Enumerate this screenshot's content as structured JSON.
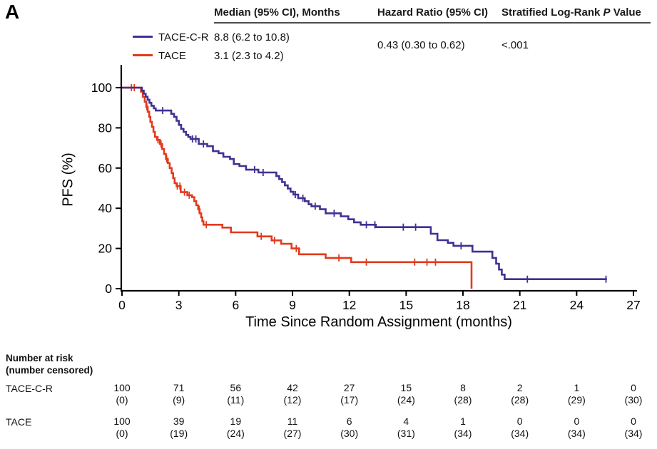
{
  "panel_label": "A",
  "colors": {
    "tace_c_r": "#3f3193",
    "tace": "#e23a1d",
    "axis": "#000000",
    "divider": "#4d4d4d"
  },
  "header": {
    "col_median": "Median (95% CI), Months",
    "col_hr": "Hazard Ratio (95% CI)",
    "col_p_prefix": "Stratified Log-Rank ",
    "col_p_italic": "P",
    "col_p_suffix": " Value",
    "hr_value": "0.43 (0.30 to 0.62)",
    "p_value": "<.001"
  },
  "legend": [
    {
      "name": "TACE-C-R",
      "median": "8.8 (6.2 to 10.8)"
    },
    {
      "name": "TACE",
      "median": "3.1 (2.3 to 4.2)"
    }
  ],
  "chart_data": {
    "type": "line",
    "subtype": "kaplan-meier-step",
    "xlabel": "Time Since Random Assignment (months)",
    "ylabel": "PFS (%)",
    "xlim": [
      0,
      27
    ],
    "ylim": [
      0,
      100
    ],
    "xticks": [
      0,
      3,
      6,
      9,
      12,
      15,
      18,
      21,
      24,
      27
    ],
    "yticks": [
      0,
      20,
      40,
      60,
      80,
      100
    ],
    "grid": false,
    "legend_position": "top-left",
    "series": [
      {
        "name": "TACE",
        "color": "#e23a1d",
        "start": [
          0,
          100
        ],
        "end_time": 18.45,
        "steps": [
          [
            1.0,
            98
          ],
          [
            1.1,
            95.5
          ],
          [
            1.2,
            93
          ],
          [
            1.28,
            90.5
          ],
          [
            1.36,
            88
          ],
          [
            1.44,
            85.5
          ],
          [
            1.5,
            83
          ],
          [
            1.58,
            80.5
          ],
          [
            1.66,
            78
          ],
          [
            1.74,
            75.5
          ],
          [
            1.85,
            74
          ],
          [
            2.0,
            72
          ],
          [
            2.12,
            69.5
          ],
          [
            2.22,
            67
          ],
          [
            2.32,
            64.5
          ],
          [
            2.42,
            62.5
          ],
          [
            2.52,
            60
          ],
          [
            2.62,
            57.5
          ],
          [
            2.7,
            55
          ],
          [
            2.78,
            52.5
          ],
          [
            2.88,
            51
          ],
          [
            3.1,
            48
          ],
          [
            3.45,
            46.5
          ],
          [
            3.7,
            45.5
          ],
          [
            3.82,
            43.5
          ],
          [
            3.92,
            41.5
          ],
          [
            4.02,
            39.5
          ],
          [
            4.1,
            37.5
          ],
          [
            4.18,
            35.5
          ],
          [
            4.24,
            33.5
          ],
          [
            4.3,
            31.8
          ],
          [
            5.3,
            30.4
          ],
          [
            5.75,
            28
          ],
          [
            7.15,
            26
          ],
          [
            7.9,
            24
          ],
          [
            8.4,
            22.3
          ],
          [
            8.95,
            20
          ],
          [
            9.35,
            17.1
          ],
          [
            10.75,
            15.3
          ],
          [
            12.1,
            13.2
          ],
          [
            18.45,
            0
          ]
        ],
        "censor_marks": [
          [
            0.5,
            100
          ],
          [
            0.65,
            100
          ],
          [
            1.31,
            90.5
          ],
          [
            1.9,
            74
          ],
          [
            2.06,
            72
          ],
          [
            2.36,
            64.5
          ],
          [
            2.92,
            51
          ],
          [
            3.06,
            51
          ],
          [
            3.3,
            48
          ],
          [
            3.55,
            46.5
          ],
          [
            4.07,
            39.5
          ],
          [
            4.45,
            31.8
          ],
          [
            7.35,
            26
          ],
          [
            8.05,
            24
          ],
          [
            9.2,
            20
          ],
          [
            11.45,
            15.3
          ],
          [
            12.9,
            13.2
          ],
          [
            15.45,
            13.2
          ],
          [
            16.1,
            13.2
          ],
          [
            16.55,
            13.2
          ]
        ]
      },
      {
        "name": "TACE-C-R",
        "color": "#3f3193",
        "start": [
          0,
          100
        ],
        "end_time": 25.6,
        "steps": [
          [
            1.05,
            98.5
          ],
          [
            1.15,
            97
          ],
          [
            1.25,
            95.5
          ],
          [
            1.35,
            94
          ],
          [
            1.45,
            92.5
          ],
          [
            1.55,
            91
          ],
          [
            1.68,
            89.7
          ],
          [
            1.78,
            88.6
          ],
          [
            2.6,
            87
          ],
          [
            2.75,
            85.5
          ],
          [
            2.88,
            83.5
          ],
          [
            3.0,
            81.5
          ],
          [
            3.12,
            79.5
          ],
          [
            3.25,
            78
          ],
          [
            3.38,
            76.5
          ],
          [
            3.5,
            75.5
          ],
          [
            3.62,
            74.5
          ],
          [
            4.05,
            72
          ],
          [
            4.5,
            70.9
          ],
          [
            4.8,
            68.4
          ],
          [
            5.1,
            67.4
          ],
          [
            5.35,
            65.6
          ],
          [
            5.7,
            64.5
          ],
          [
            5.9,
            62
          ],
          [
            6.2,
            61
          ],
          [
            6.55,
            59.2
          ],
          [
            7.2,
            57.8
          ],
          [
            8.15,
            56
          ],
          [
            8.3,
            54.5
          ],
          [
            8.45,
            53
          ],
          [
            8.6,
            51.4
          ],
          [
            8.75,
            49.8
          ],
          [
            8.9,
            48.2
          ],
          [
            9.05,
            46.8
          ],
          [
            9.3,
            45
          ],
          [
            9.65,
            43.5
          ],
          [
            9.85,
            42
          ],
          [
            10.0,
            41
          ],
          [
            10.45,
            39.5
          ],
          [
            10.75,
            37.5
          ],
          [
            11.55,
            36
          ],
          [
            11.95,
            34.5
          ],
          [
            12.25,
            33
          ],
          [
            12.6,
            31.8
          ],
          [
            13.4,
            30.6
          ],
          [
            16.3,
            27.3
          ],
          [
            16.65,
            24.1
          ],
          [
            17.2,
            22.8
          ],
          [
            17.5,
            21.3
          ],
          [
            18.5,
            18.4
          ],
          [
            19.55,
            15.3
          ],
          [
            19.75,
            12.4
          ],
          [
            19.9,
            9.5
          ],
          [
            20.05,
            7
          ],
          [
            20.2,
            4.7
          ]
        ],
        "censor_marks": [
          [
            2.15,
            88.6
          ],
          [
            3.72,
            74.5
          ],
          [
            3.9,
            74.5
          ],
          [
            4.3,
            72
          ],
          [
            7.0,
            59.2
          ],
          [
            7.45,
            57.8
          ],
          [
            9.15,
            46.8
          ],
          [
            9.55,
            45
          ],
          [
            10.2,
            41
          ],
          [
            11.2,
            37.5
          ],
          [
            12.9,
            31.8
          ],
          [
            13.35,
            31.8
          ],
          [
            14.85,
            30.6
          ],
          [
            15.5,
            30.6
          ],
          [
            17.9,
            21.3
          ],
          [
            21.4,
            4.7
          ],
          [
            25.55,
            4.7
          ]
        ]
      }
    ]
  },
  "risk_table": {
    "title_line1": "Number at risk",
    "title_line2": "(number censored)",
    "times": [
      0,
      3,
      6,
      9,
      12,
      15,
      18,
      21,
      24,
      27
    ],
    "rows": [
      {
        "name": "TACE-C-R",
        "at_risk": [
          "100",
          "71",
          "56",
          "42",
          "27",
          "15",
          "8",
          "2",
          "1",
          "0"
        ],
        "censored": [
          "(0)",
          "(9)",
          "(11)",
          "(12)",
          "(17)",
          "(24)",
          "(28)",
          "(28)",
          "(29)",
          "(30)"
        ]
      },
      {
        "name": "TACE",
        "at_risk": [
          "100",
          "39",
          "19",
          "11",
          "6",
          "4",
          "1",
          "0",
          "0",
          "0"
        ],
        "censored": [
          "(0)",
          "(19)",
          "(24)",
          "(27)",
          "(30)",
          "(31)",
          "(34)",
          "(34)",
          "(34)",
          "(34)"
        ]
      }
    ]
  }
}
